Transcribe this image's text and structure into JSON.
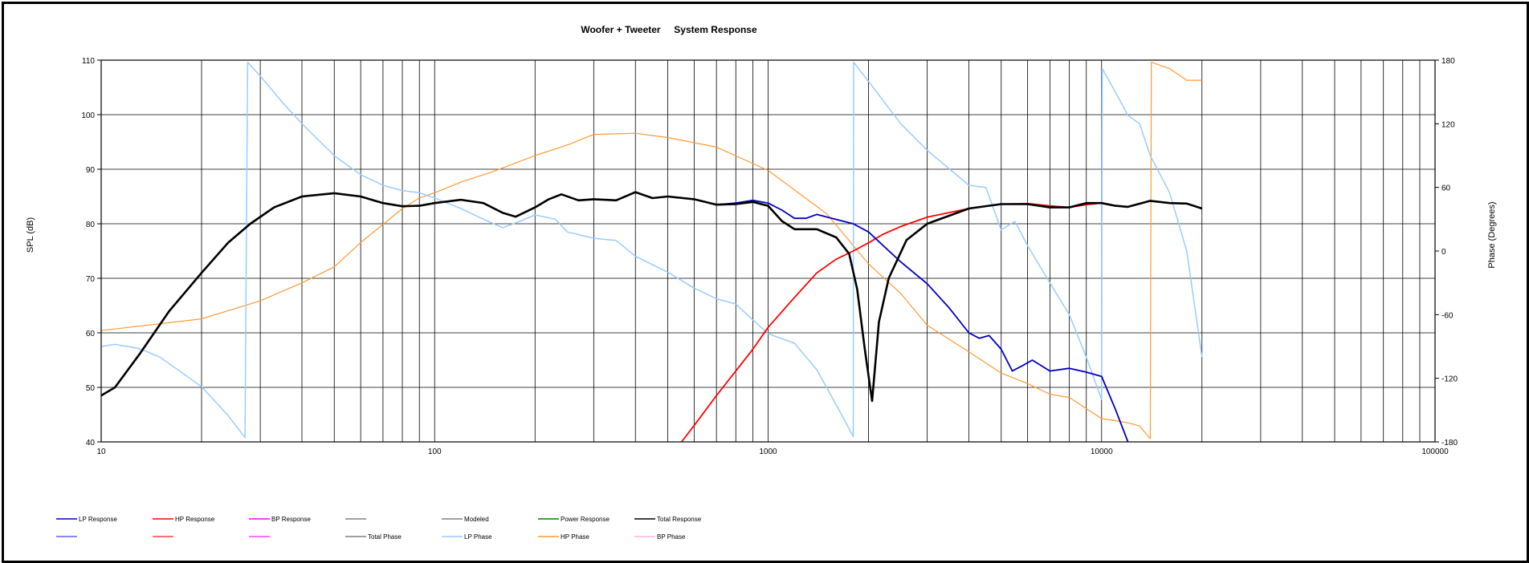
{
  "chart_data": {
    "type": "line",
    "title": "Woofer + Tweeter     System Response",
    "xscale": "log",
    "xlim": [
      10,
      100000
    ],
    "xticks": [
      "10",
      "100",
      "1000",
      "10000",
      "100000"
    ],
    "ylabel": "SPL (dB)",
    "ylim": [
      40,
      110
    ],
    "yticks": [
      "40",
      "50",
      "60",
      "70",
      "80",
      "90",
      "100",
      "110"
    ],
    "y2label": "Phase (Degrees)",
    "y2lim": [
      -180,
      180
    ],
    "y2ticks": [
      "-180",
      "-120",
      "-60",
      "0",
      "60",
      "120",
      "180"
    ],
    "grid": true,
    "legend_position": "bottom",
    "legend": [
      {
        "label": "LP Response",
        "color": "#0000c0"
      },
      {
        "label": "HP Response",
        "color": "#ff0000"
      },
      {
        "label": "BP Response",
        "color": "#ff00ff"
      },
      {
        "label": "",
        "color": "#808080"
      },
      {
        "label": "Modeled",
        "color": "#808080"
      },
      {
        "label": "Power Response",
        "color": "#008000"
      },
      {
        "label": "Total Response",
        "color": "#000000"
      },
      {
        "label": "",
        "color": "#6060ff"
      },
      {
        "label": "",
        "color": "#ff4040"
      },
      {
        "label": "",
        "color": "#ff40ff"
      },
      {
        "label": "Total Phase",
        "color": "#808080"
      },
      {
        "label": "LP Phase",
        "color": "#99ccff"
      },
      {
        "label": "HP Phase",
        "color": "#ff9933"
      },
      {
        "label": "BP Phase",
        "color": "#ffb0e0"
      }
    ],
    "series": [
      {
        "name": "Total Response",
        "axis": "left",
        "color": "#000000",
        "width": 2.6,
        "points": [
          [
            10,
            48.5
          ],
          [
            11,
            50
          ],
          [
            13,
            56
          ],
          [
            16,
            64
          ],
          [
            20,
            71
          ],
          [
            24,
            76.5
          ],
          [
            28,
            80
          ],
          [
            33,
            83
          ],
          [
            40,
            85
          ],
          [
            50,
            85.6
          ],
          [
            60,
            85
          ],
          [
            70,
            83.8
          ],
          [
            80,
            83.2
          ],
          [
            90,
            83.3
          ],
          [
            100,
            83.8
          ],
          [
            120,
            84.4
          ],
          [
            140,
            83.8
          ],
          [
            160,
            82
          ],
          [
            175,
            81.3
          ],
          [
            200,
            83
          ],
          [
            220,
            84.5
          ],
          [
            240,
            85.4
          ],
          [
            270,
            84.3
          ],
          [
            300,
            84.5
          ],
          [
            350,
            84.3
          ],
          [
            400,
            85.8
          ],
          [
            450,
            84.7
          ],
          [
            500,
            85
          ],
          [
            600,
            84.5
          ],
          [
            700,
            83.5
          ],
          [
            800,
            83.6
          ],
          [
            900,
            84
          ],
          [
            1000,
            83.3
          ],
          [
            1100,
            80.5
          ],
          [
            1200,
            79
          ],
          [
            1400,
            79
          ],
          [
            1600,
            77.5
          ],
          [
            1750,
            74.5
          ],
          [
            1850,
            68
          ],
          [
            1950,
            57
          ],
          [
            2050,
            47.5
          ],
          [
            2150,
            62
          ],
          [
            2300,
            70
          ],
          [
            2600,
            77
          ],
          [
            3000,
            80
          ],
          [
            4000,
            82.8
          ],
          [
            5000,
            83.6
          ],
          [
            6000,
            83.6
          ],
          [
            7000,
            83
          ],
          [
            8000,
            83
          ],
          [
            9000,
            83.8
          ],
          [
            10000,
            83.8
          ],
          [
            11000,
            83.3
          ],
          [
            12000,
            83.1
          ],
          [
            14000,
            84.2
          ],
          [
            16000,
            83.8
          ],
          [
            18000,
            83.7
          ],
          [
            20000,
            82.8
          ]
        ]
      },
      {
        "name": "LP Response",
        "axis": "left",
        "color": "#0000c0",
        "width": 1.8,
        "points": [
          [
            700,
            83.5
          ],
          [
            800,
            83.8
          ],
          [
            900,
            84.3
          ],
          [
            1000,
            83.8
          ],
          [
            1100,
            82.5
          ],
          [
            1200,
            81
          ],
          [
            1300,
            81
          ],
          [
            1400,
            81.7
          ],
          [
            1600,
            80.8
          ],
          [
            1800,
            80
          ],
          [
            2000,
            78.5
          ],
          [
            2500,
            73
          ],
          [
            3000,
            69
          ],
          [
            3500,
            64.5
          ],
          [
            4000,
            60
          ],
          [
            4300,
            59
          ],
          [
            4600,
            59.5
          ],
          [
            5000,
            57
          ],
          [
            5400,
            53
          ],
          [
            5800,
            54
          ],
          [
            6200,
            55
          ],
          [
            7000,
            53
          ],
          [
            8000,
            53.5
          ],
          [
            9000,
            52.8
          ],
          [
            10000,
            52
          ],
          [
            11000,
            46
          ],
          [
            12000,
            40
          ]
        ]
      },
      {
        "name": "HP Response",
        "axis": "left",
        "color": "#ff0000",
        "width": 1.8,
        "points": [
          [
            550,
            40
          ],
          [
            600,
            43
          ],
          [
            700,
            48.5
          ],
          [
            800,
            53
          ],
          [
            900,
            57
          ],
          [
            1000,
            61
          ],
          [
            1200,
            66.5
          ],
          [
            1400,
            71
          ],
          [
            1600,
            73.5
          ],
          [
            1800,
            75
          ],
          [
            2000,
            76.5
          ],
          [
            2200,
            78
          ],
          [
            2500,
            79.5
          ],
          [
            3000,
            81.2
          ],
          [
            4000,
            82.8
          ],
          [
            5000,
            83.6
          ],
          [
            6000,
            83.7
          ],
          [
            7000,
            83.3
          ],
          [
            8000,
            83
          ],
          [
            9000,
            83.5
          ],
          [
            10000,
            83.8
          ]
        ]
      },
      {
        "name": "LP Phase",
        "axis": "right",
        "color": "#99ccff",
        "width": 1.5,
        "points": [
          [
            10,
            -90
          ],
          [
            11,
            -88
          ],
          [
            13,
            -92
          ],
          [
            15,
            -100
          ],
          [
            20,
            -128
          ],
          [
            24,
            -155
          ],
          [
            27,
            -176
          ],
          [
            27.5,
            178
          ],
          [
            30,
            165
          ],
          [
            35,
            140
          ],
          [
            40,
            120
          ],
          [
            50,
            90
          ],
          [
            60,
            72
          ],
          [
            70,
            62
          ],
          [
            80,
            57
          ],
          [
            90,
            55
          ],
          [
            100,
            50
          ],
          [
            120,
            40
          ],
          [
            140,
            30
          ],
          [
            160,
            22
          ],
          [
            180,
            28
          ],
          [
            200,
            34
          ],
          [
            230,
            30
          ],
          [
            250,
            18
          ],
          [
            300,
            12
          ],
          [
            350,
            10
          ],
          [
            400,
            -5
          ],
          [
            500,
            -20
          ],
          [
            600,
            -35
          ],
          [
            700,
            -45
          ],
          [
            800,
            -50
          ],
          [
            900,
            -65
          ],
          [
            1000,
            -78
          ],
          [
            1200,
            -87
          ],
          [
            1400,
            -112
          ],
          [
            1600,
            -145
          ],
          [
            1800,
            -175
          ],
          [
            1805,
            178
          ],
          [
            2000,
            160
          ],
          [
            2500,
            120
          ],
          [
            3000,
            95
          ],
          [
            4000,
            62
          ],
          [
            4500,
            60
          ],
          [
            5000,
            20
          ],
          [
            5500,
            28
          ],
          [
            6000,
            5
          ],
          [
            7000,
            -30
          ],
          [
            8000,
            -60
          ],
          [
            9000,
            -100
          ],
          [
            10000,
            -140
          ],
          [
            10050,
            172
          ],
          [
            11000,
            150
          ],
          [
            12000,
            128
          ],
          [
            13000,
            120
          ],
          [
            14000,
            90
          ],
          [
            16000,
            55
          ],
          [
            18000,
            0
          ],
          [
            20000,
            -100
          ]
        ]
      },
      {
        "name": "HP Phase",
        "axis": "right",
        "color": "#ff9933",
        "width": 1.2,
        "points": [
          [
            10,
            -75
          ],
          [
            20,
            -64
          ],
          [
            30,
            -47
          ],
          [
            40,
            -30
          ],
          [
            50,
            -15
          ],
          [
            60,
            8
          ],
          [
            70,
            25
          ],
          [
            80,
            40
          ],
          [
            90,
            50
          ],
          [
            100,
            55
          ],
          [
            120,
            65
          ],
          [
            150,
            75
          ],
          [
            200,
            90
          ],
          [
            250,
            100
          ],
          [
            300,
            110
          ],
          [
            400,
            111
          ],
          [
            500,
            107
          ],
          [
            700,
            98
          ],
          [
            1000,
            76
          ],
          [
            1500,
            35
          ],
          [
            2000,
            -12
          ],
          [
            2500,
            -40
          ],
          [
            3000,
            -70
          ],
          [
            4000,
            -95
          ],
          [
            5000,
            -115
          ],
          [
            6000,
            -125
          ],
          [
            7000,
            -135
          ],
          [
            8000,
            -138
          ],
          [
            10000,
            -158
          ],
          [
            12000,
            -162
          ],
          [
            13000,
            -165
          ],
          [
            14000,
            -177
          ],
          [
            14100,
            178
          ],
          [
            16000,
            172
          ],
          [
            18000,
            161
          ],
          [
            20000,
            161
          ]
        ]
      }
    ]
  }
}
